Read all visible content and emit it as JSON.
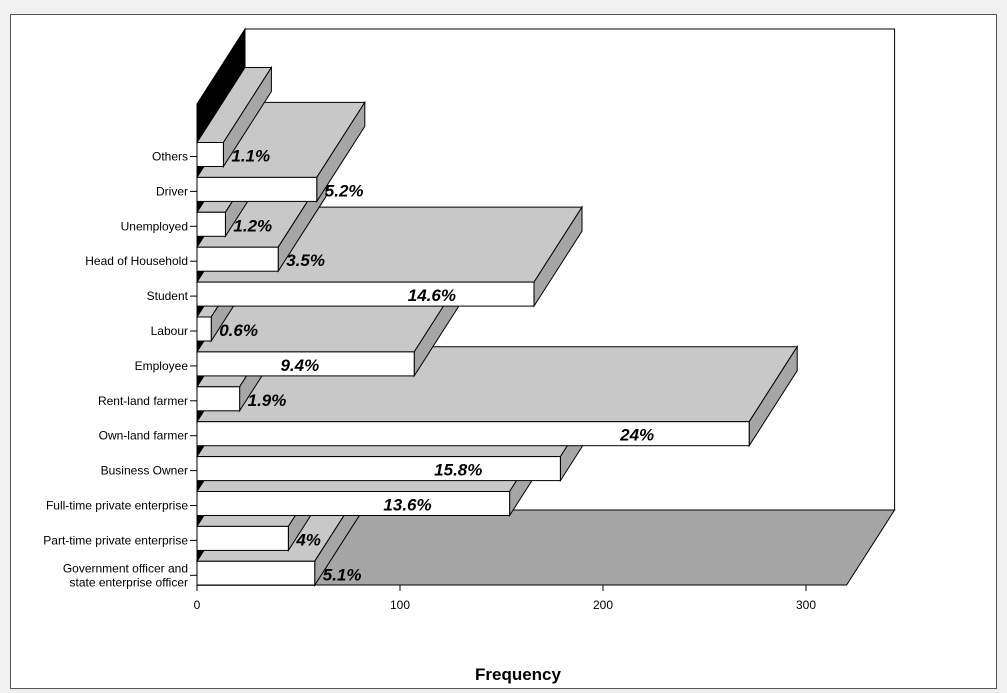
{
  "chart_data": {
    "type": "bar",
    "orientation": "horizontal",
    "style": "3d",
    "categories": [
      "Others",
      "Driver",
      "Unemployed",
      "Head of Household",
      "Student",
      "Labour",
      "Employee",
      "Rent-land farmer",
      "Own-land farmer",
      "Business Owner",
      "Full-time private enterprise",
      "Part-time private enterprise",
      "Government officer and state enterprise officer"
    ],
    "category_lines": [
      [
        "Others"
      ],
      [
        "Driver"
      ],
      [
        "Unemployed"
      ],
      [
        "Head of Household"
      ],
      [
        "Student"
      ],
      [
        "Labour"
      ],
      [
        "Employee"
      ],
      [
        "Rent-land farmer"
      ],
      [
        "Own-land farmer"
      ],
      [
        "Business Owner"
      ],
      [
        "Full-time private enterprise"
      ],
      [
        "Part-time private enterprise"
      ],
      [
        "Government officer and",
        "state enterprise officer"
      ]
    ],
    "values": [
      13,
      59,
      14,
      40,
      166,
      7,
      107,
      21,
      272,
      179,
      154,
      45,
      58
    ],
    "data_labels": [
      "1.1%",
      "5.2%",
      "1.2%",
      "3.5%",
      "14.6%",
      "0.6%",
      "9.4%",
      "1.9%",
      "24%",
      "15.8%",
      "13.6%",
      "4%",
      "5.1%"
    ],
    "xlabel": "Frequency",
    "ylabel": "",
    "xticks": [
      "0",
      "100",
      "200",
      "300"
    ],
    "xlim": [
      0,
      320
    ],
    "grid": false,
    "legend": "none",
    "colors": {
      "bar_face": "#ffffff",
      "bar_side": "#a6a6a6",
      "bar_top": "#c8c8c8",
      "wall": "#000000",
      "floor": "#a6a6a6",
      "plot_background": "#ffffff",
      "frame_background": "#f0f0f0",
      "outline": "#000000"
    }
  }
}
